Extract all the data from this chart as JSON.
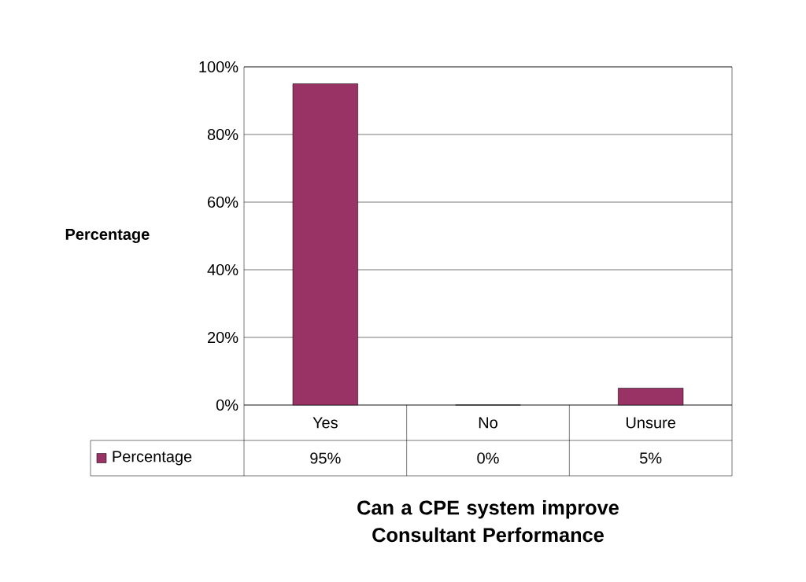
{
  "chart_data": {
    "type": "bar",
    "xlabel": "Can a CPE system improve Consultant Performance",
    "ylabel": "Percentage",
    "categories": [
      "Yes",
      "No",
      "Unsure"
    ],
    "series": [
      {
        "name": "Percentage",
        "color": "#993366",
        "values": [
          95,
          0,
          5
        ],
        "value_labels": [
          "95%",
          "0%",
          "5%"
        ]
      }
    ],
    "ylim": [
      0,
      100
    ],
    "yticks": [
      {
        "value": 0,
        "label": "0%"
      },
      {
        "value": 20,
        "label": "20%"
      },
      {
        "value": 40,
        "label": "40%"
      },
      {
        "value": 60,
        "label": "60%"
      },
      {
        "value": 80,
        "label": "80%"
      },
      {
        "value": 100,
        "label": "100%"
      }
    ],
    "grid": "y",
    "legend": "bottom left"
  }
}
